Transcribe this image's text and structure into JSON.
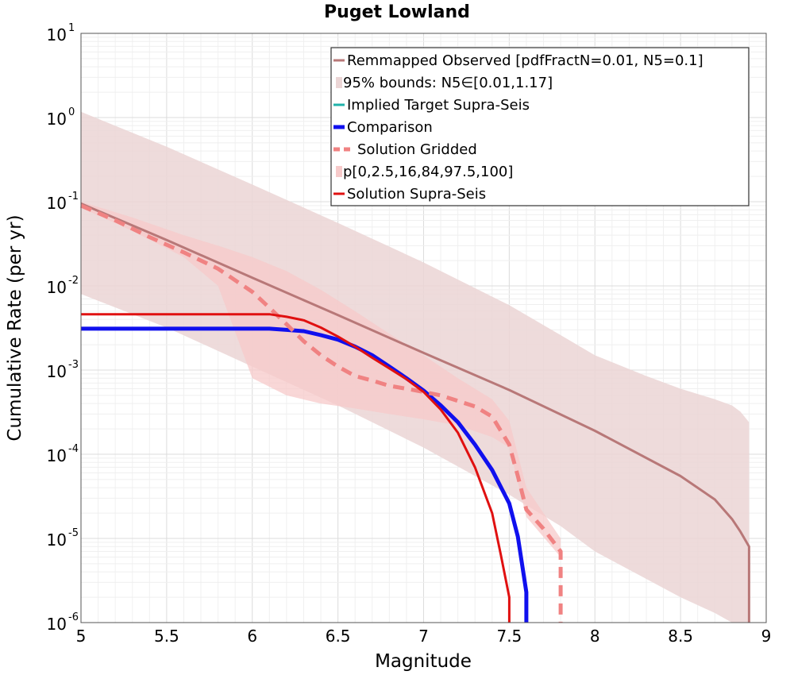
{
  "chart_data": {
    "type": "line",
    "title": "Puget Lowland",
    "xlabel": "Magnitude",
    "ylabel": "Cumulative Rate (per yr)",
    "xlim": [
      5,
      9
    ],
    "ylim": [
      1e-06,
      10
    ],
    "yscale": "log",
    "grid": true,
    "legend_position": "top-right",
    "x_ticks": [
      "5",
      "5.5",
      "6",
      "6.5",
      "7",
      "7.5",
      "8",
      "8.5",
      "9"
    ],
    "y_ticks": [
      {
        "base": "10",
        "exp": "-6",
        "value": 1e-06
      },
      {
        "base": "10",
        "exp": "-5",
        "value": 1e-05
      },
      {
        "base": "10",
        "exp": "-4",
        "value": 0.0001
      },
      {
        "base": "10",
        "exp": "-3",
        "value": 0.001
      },
      {
        "base": "10",
        "exp": "-2",
        "value": 0.01
      },
      {
        "base": "10",
        "exp": "-1",
        "value": 0.1
      },
      {
        "base": "10",
        "exp": "0",
        "value": 1
      },
      {
        "base": "10",
        "exp": "1",
        "value": 10
      }
    ],
    "bands": [
      {
        "legend": "95% bounds: N5∈[0.01,1.17]",
        "color": "#ebd5d5",
        "x": [
          5.0,
          5.5,
          6.0,
          6.5,
          7.0,
          7.5,
          7.8,
          8.0,
          8.3,
          8.5,
          8.7,
          8.8,
          8.85,
          8.9
        ],
        "upper": [
          1.17,
          0.45,
          0.16,
          0.056,
          0.019,
          0.0059,
          0.0026,
          0.0015,
          0.00085,
          0.0006,
          0.00045,
          0.00038,
          0.00032,
          0.00024
        ],
        "lower": [
          0.008,
          0.0032,
          0.0011,
          0.00038,
          0.00012,
          3.3e-05,
          1.4e-05,
          7e-06,
          3.3e-06,
          2e-06,
          1.3e-06,
          1e-06,
          1e-06,
          1e-06
        ]
      },
      {
        "legend": "p[0,2.5,16,84,97.5,100]",
        "color": "#f7caca",
        "x": [
          5.0,
          5.3,
          5.6,
          5.8,
          6.0,
          6.2,
          6.4,
          6.6,
          6.8,
          7.0,
          7.2,
          7.4,
          7.5,
          7.6,
          7.8
        ],
        "upper": [
          0.1,
          0.065,
          0.04,
          0.03,
          0.022,
          0.015,
          0.009,
          0.005,
          0.0027,
          0.0015,
          0.0008,
          0.00045,
          0.00025,
          4e-05,
          1e-05
        ],
        "lower": [
          0.085,
          0.045,
          0.022,
          0.01,
          0.0008,
          0.0005,
          0.0004,
          0.00035,
          0.0003,
          0.00026,
          0.00022,
          0.00016,
          0.00012,
          1.8e-05,
          6e-06
        ]
      }
    ],
    "series": [
      {
        "name": "Remmapped Observed [pdfFractN=0.01, N5=0.1]",
        "color": "#b87878",
        "style": "solid",
        "width": 3,
        "x": [
          5.0,
          5.5,
          6.0,
          6.5,
          7.0,
          7.5,
          8.0,
          8.5,
          8.7,
          8.8,
          8.85,
          8.9,
          8.9
        ],
        "y": [
          0.095,
          0.035,
          0.0125,
          0.0045,
          0.0016,
          0.00058,
          0.00019,
          5.5e-05,
          2.9e-05,
          1.7e-05,
          1.2e-05,
          8e-06,
          1e-06
        ]
      },
      {
        "name": "Implied Target Supra-Seis",
        "color": "#20b2aa",
        "style": "solid",
        "width": 3,
        "x": [],
        "y": []
      },
      {
        "name": "Comparison",
        "color": "#1010ee",
        "style": "solid",
        "width": 5,
        "x": [
          5.0,
          5.5,
          6.0,
          6.1,
          6.2,
          6.3,
          6.4,
          6.5,
          6.6,
          6.7,
          6.8,
          6.9,
          7.0,
          7.1,
          7.2,
          7.3,
          7.4,
          7.5,
          7.55,
          7.6,
          7.6
        ],
        "y": [
          0.0031,
          0.0031,
          0.0031,
          0.0031,
          0.003,
          0.0029,
          0.0026,
          0.0023,
          0.0019,
          0.0015,
          0.0011,
          0.0008,
          0.00057,
          0.00038,
          0.00024,
          0.00013,
          6.5e-05,
          2.6e-05,
          1.05e-05,
          2.3e-06,
          1e-06
        ]
      },
      {
        "name": "Solution Gridded",
        "color": "#f08282",
        "style": "dashed",
        "width": 5,
        "x": [
          5.0,
          5.2,
          5.4,
          5.6,
          5.8,
          6.0,
          6.1,
          6.2,
          6.3,
          6.4,
          6.5,
          6.6,
          6.7,
          6.8,
          6.9,
          7.0,
          7.1,
          7.2,
          7.3,
          7.4,
          7.5,
          7.55,
          7.6,
          7.7,
          7.8,
          7.8
        ],
        "y": [
          0.09,
          0.06,
          0.038,
          0.025,
          0.016,
          0.0085,
          0.0055,
          0.0035,
          0.0022,
          0.0015,
          0.0011,
          0.00085,
          0.00075,
          0.00065,
          0.0006,
          0.00055,
          0.0005,
          0.00043,
          0.00037,
          0.00028,
          0.00013,
          5.5e-05,
          2.2e-05,
          1.3e-05,
          7e-06,
          1e-06
        ]
      },
      {
        "name": "Solution Supra-Seis",
        "color": "#e01010",
        "style": "solid",
        "width": 3,
        "x": [
          5.0,
          5.5,
          6.0,
          6.1,
          6.2,
          6.3,
          6.4,
          6.5,
          6.6,
          6.7,
          6.8,
          6.9,
          7.0,
          7.1,
          7.2,
          7.3,
          7.4,
          7.45,
          7.5,
          7.5
        ],
        "y": [
          0.0046,
          0.0046,
          0.0046,
          0.0046,
          0.0043,
          0.0039,
          0.0032,
          0.0025,
          0.0019,
          0.0014,
          0.00105,
          0.00078,
          0.00055,
          0.00034,
          0.00018,
          7e-05,
          2e-05,
          6.5e-06,
          2e-06,
          1e-06
        ]
      }
    ],
    "legend": [
      {
        "label": "Remmapped Observed [pdfFractN=0.01, N5=0.1]",
        "kind": "line",
        "color": "#b87878",
        "style": "solid",
        "width": 3
      },
      {
        "label": "95% bounds: N5∈[0.01,1.17]",
        "kind": "patch",
        "color": "#ebd5d5"
      },
      {
        "label": "Implied Target Supra-Seis",
        "kind": "line",
        "color": "#20b2aa",
        "style": "solid",
        "width": 3
      },
      {
        "label": "Comparison",
        "kind": "line",
        "color": "#1010ee",
        "style": "solid",
        "width": 5
      },
      {
        "label": "Solution Gridded",
        "kind": "line",
        "color": "#f08282",
        "style": "dashed",
        "width": 5
      },
      {
        "label": "p[0,2.5,16,84,97.5,100]",
        "kind": "patch",
        "color": "#f7caca"
      },
      {
        "label": "Solution Supra-Seis",
        "kind": "line",
        "color": "#e01010",
        "style": "solid",
        "width": 3
      }
    ]
  }
}
